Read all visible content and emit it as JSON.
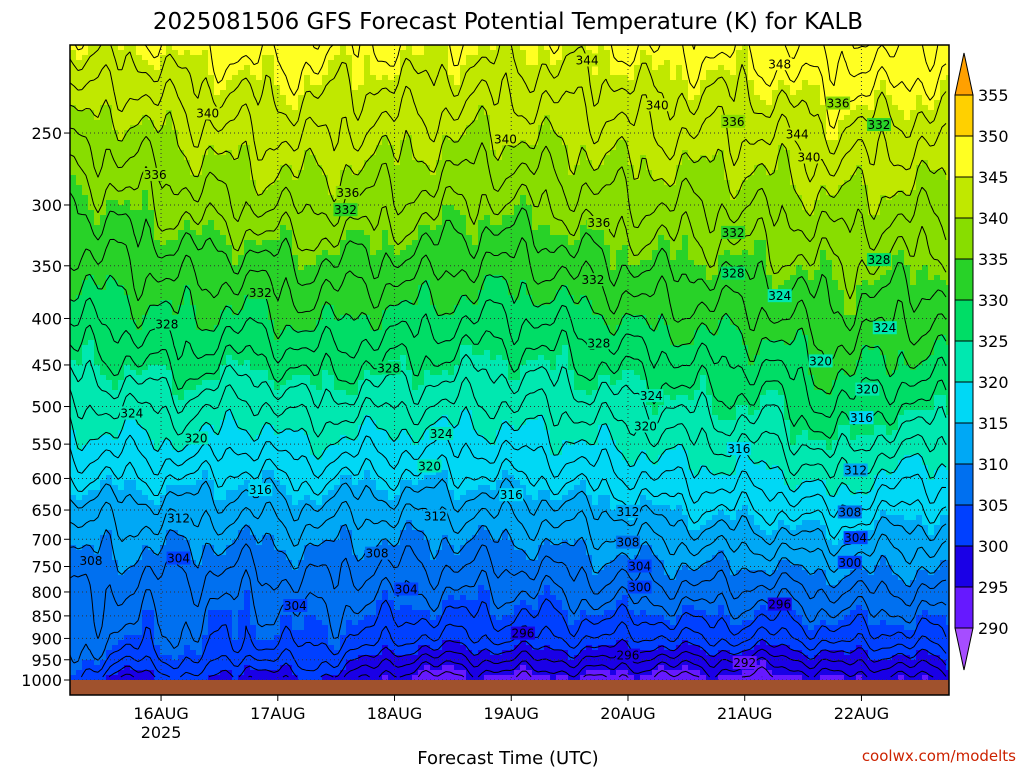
{
  "chart_data": {
    "type": "heatmap",
    "title": "2025081506 GFS Forecast Potential Temperature (K) for KALB",
    "xlabel": "Forecast Time (UTC)",
    "ylabel": "",
    "y_scale": "log",
    "y_reversed": true,
    "ylim": [
      1000,
      200
    ],
    "xlim": [
      -0.03,
      7.5
    ],
    "x_unit": "days from 2025-08-15 06 UTC",
    "x_ticks": [
      {
        "value": 0.75,
        "label": "16AUG",
        "sublabel": "2025"
      },
      {
        "value": 1.75,
        "label": "17AUG"
      },
      {
        "value": 2.75,
        "label": "18AUG"
      },
      {
        "value": 3.75,
        "label": "19AUG"
      },
      {
        "value": 4.75,
        "label": "20AUG"
      },
      {
        "value": 5.75,
        "label": "21AUG"
      },
      {
        "value": 6.75,
        "label": "22AUG"
      }
    ],
    "y_ticks": [
      250,
      300,
      350,
      400,
      450,
      500,
      550,
      600,
      650,
      700,
      750,
      800,
      850,
      900,
      950,
      1000
    ],
    "grid": true,
    "colorbar": {
      "ticks": [
        290,
        295,
        300,
        305,
        310,
        315,
        320,
        325,
        330,
        335,
        340,
        345,
        350,
        355
      ],
      "levels": [
        285,
        290,
        295,
        300,
        305,
        310,
        315,
        320,
        325,
        330,
        335,
        340,
        345,
        350,
        355,
        360
      ],
      "colors": [
        "#a64dff",
        "#6619ff",
        "#1a00e6",
        "#0040ff",
        "#0070f0",
        "#00a8f5",
        "#00d8f5",
        "#00e8b0",
        "#00dd66",
        "#28d228",
        "#88dd00",
        "#c0e800",
        "#ffff22",
        "#ffd000",
        "#ffa000"
      ]
    },
    "ground_color": "#a0522d",
    "profile_levels": [
      1000,
      975,
      950,
      925,
      900,
      850,
      800,
      750,
      700,
      650,
      600,
      550,
      500,
      450,
      400,
      350,
      300,
      250,
      200
    ],
    "columns": [
      {
        "t": 0.0,
        "theta": [
          304,
          305,
          306,
          306.5,
          307,
          307.5,
          308.5,
          309.5,
          311,
          313,
          316,
          319,
          322,
          325,
          328,
          331,
          334,
          339,
          345
        ]
      },
      {
        "t": 0.5,
        "theta": [
          297,
          300,
          302,
          304,
          305,
          306.5,
          307.5,
          309,
          311,
          313,
          316,
          319,
          322,
          325.5,
          329,
          332,
          335.5,
          339,
          345
        ]
      },
      {
        "t": 1.0,
        "theta": [
          302,
          303.5,
          304.5,
          305,
          305.5,
          306,
          307,
          308.5,
          310.5,
          313,
          316,
          320,
          323,
          327,
          330,
          333,
          337,
          341,
          346
        ]
      },
      {
        "t": 1.5,
        "theta": [
          297,
          299,
          301,
          303,
          304,
          305,
          306.5,
          308,
          310,
          312.5,
          315,
          318,
          321,
          325,
          329,
          333,
          338,
          342,
          347
        ]
      },
      {
        "t": 2.0,
        "theta": [
          300,
          302,
          303,
          304,
          305,
          306,
          307.5,
          309,
          311,
          313.5,
          316.5,
          320,
          323.5,
          327,
          331,
          334,
          338.5,
          342.5,
          347
        ]
      },
      {
        "t": 2.5,
        "theta": [
          296,
          298,
          300,
          302,
          303.5,
          305,
          306.5,
          308,
          310,
          312.5,
          315.5,
          319,
          322.5,
          326,
          329.5,
          333.5,
          337.5,
          341.5,
          346
        ]
      },
      {
        "t": 3.0,
        "theta": [
          293,
          295,
          297,
          299.5,
          301.5,
          304,
          306,
          308,
          310,
          312.5,
          315.5,
          318.5,
          322,
          325.5,
          329,
          333,
          337,
          341,
          346
        ]
      },
      {
        "t": 3.5,
        "theta": [
          294,
          296,
          298,
          300,
          302,
          304,
          306,
          308,
          310,
          312.5,
          315.5,
          318.5,
          321.5,
          324.5,
          328,
          331.5,
          335.5,
          340,
          345
        ]
      },
      {
        "t": 4.0,
        "theta": [
          294,
          296,
          298,
          300,
          302,
          304,
          306,
          308,
          310.5,
          313,
          316,
          319,
          322,
          325,
          328,
          332,
          336,
          340.5,
          345
        ]
      },
      {
        "t": 4.5,
        "theta": [
          294,
          296,
          298,
          300,
          302,
          304.5,
          307,
          309,
          311.5,
          314,
          317,
          320,
          323,
          326,
          329.5,
          333.5,
          337.5,
          341,
          345.5
        ]
      },
      {
        "t": 5.0,
        "theta": [
          293,
          295,
          297,
          299.5,
          301.5,
          304.5,
          307,
          309.5,
          312,
          315,
          318,
          321,
          324,
          327,
          331,
          334.5,
          338,
          342,
          346.5
        ]
      },
      {
        "t": 5.5,
        "theta": [
          294,
          296,
          298,
          300.5,
          302.5,
          305,
          307.5,
          310,
          313,
          316,
          319,
          322,
          325,
          328,
          331,
          334.5,
          338,
          342,
          346.5
        ]
      },
      {
        "t": 6.0,
        "theta": [
          293,
          295,
          297,
          299.5,
          301.5,
          304.5,
          307,
          310,
          313,
          316,
          319,
          322,
          325,
          328,
          331.5,
          335,
          338.5,
          342,
          347
        ]
      },
      {
        "t": 6.5,
        "theta": [
          295,
          297,
          299,
          301,
          303,
          305.5,
          308,
          311,
          314.5,
          318,
          322,
          325.5,
          328.5,
          331,
          333.5,
          336,
          339.5,
          344,
          349
        ]
      },
      {
        "t": 7.0,
        "theta": [
          295,
          297,
          299,
          301,
          303,
          305.5,
          308,
          310.5,
          313,
          316,
          319,
          322.5,
          326,
          329.5,
          332.5,
          335.5,
          339,
          343,
          349
        ]
      },
      {
        "t": 7.5,
        "theta": [
          296,
          298,
          300,
          302,
          303.5,
          305.5,
          307.5,
          310,
          312.5,
          315.5,
          318.5,
          322,
          325.5,
          329,
          332,
          335,
          338.5,
          342.5,
          347
        ]
      }
    ],
    "contour_labels": [
      {
        "value": 344,
        "t": 4.4,
        "p": 208
      },
      {
        "value": 348,
        "t": 6.05,
        "p": 210
      },
      {
        "value": 340,
        "t": 1.15,
        "p": 238
      },
      {
        "value": 340,
        "t": 3.7,
        "p": 254
      },
      {
        "value": 340,
        "t": 5.0,
        "p": 233
      },
      {
        "value": 336,
        "t": 6.55,
        "p": 232
      },
      {
        "value": 336,
        "t": 5.65,
        "p": 243
      },
      {
        "value": 344,
        "t": 6.2,
        "p": 251
      },
      {
        "value": 332,
        "t": 6.9,
        "p": 245
      },
      {
        "value": 340,
        "t": 6.3,
        "p": 266
      },
      {
        "value": 336,
        "t": 0.7,
        "p": 278
      },
      {
        "value": 336,
        "t": 2.35,
        "p": 291
      },
      {
        "value": 332,
        "t": 2.33,
        "p": 304
      },
      {
        "value": 336,
        "t": 4.5,
        "p": 314
      },
      {
        "value": 332,
        "t": 5.65,
        "p": 322
      },
      {
        "value": 328,
        "t": 5.65,
        "p": 357
      },
      {
        "value": 328,
        "t": 6.9,
        "p": 345
      },
      {
        "value": 332,
        "t": 1.6,
        "p": 375
      },
      {
        "value": 332,
        "t": 4.45,
        "p": 363
      },
      {
        "value": 324,
        "t": 6.05,
        "p": 378
      },
      {
        "value": 328,
        "t": 0.8,
        "p": 406
      },
      {
        "value": 324,
        "t": 6.95,
        "p": 410
      },
      {
        "value": 328,
        "t": 4.5,
        "p": 426
      },
      {
        "value": 320,
        "t": 6.4,
        "p": 446
      },
      {
        "value": 328,
        "t": 2.7,
        "p": 454
      },
      {
        "value": 320,
        "t": 6.8,
        "p": 479
      },
      {
        "value": 324,
        "t": 4.95,
        "p": 487
      },
      {
        "value": 324,
        "t": 0.5,
        "p": 509
      },
      {
        "value": 316,
        "t": 6.75,
        "p": 515
      },
      {
        "value": 320,
        "t": 4.9,
        "p": 526
      },
      {
        "value": 324,
        "t": 3.15,
        "p": 536
      },
      {
        "value": 320,
        "t": 1.05,
        "p": 542
      },
      {
        "value": 316,
        "t": 5.7,
        "p": 557
      },
      {
        "value": 320,
        "t": 3.05,
        "p": 582
      },
      {
        "value": 312,
        "t": 6.7,
        "p": 588
      },
      {
        "value": 316,
        "t": 1.6,
        "p": 618
      },
      {
        "value": 316,
        "t": 3.75,
        "p": 626
      },
      {
        "value": 312,
        "t": 4.75,
        "p": 653
      },
      {
        "value": 308,
        "t": 6.65,
        "p": 654
      },
      {
        "value": 312,
        "t": 0.9,
        "p": 664
      },
      {
        "value": 312,
        "t": 3.1,
        "p": 661
      },
      {
        "value": 304,
        "t": 6.7,
        "p": 698
      },
      {
        "value": 308,
        "t": 4.75,
        "p": 706
      },
      {
        "value": 300,
        "t": 6.65,
        "p": 743
      },
      {
        "value": 308,
        "t": 0.15,
        "p": 740
      },
      {
        "value": 304,
        "t": 0.9,
        "p": 735
      },
      {
        "value": 308,
        "t": 2.6,
        "p": 726
      },
      {
        "value": 304,
        "t": 4.85,
        "p": 750
      },
      {
        "value": 300,
        "t": 4.85,
        "p": 791
      },
      {
        "value": 304,
        "t": 2.85,
        "p": 795
      },
      {
        "value": 304,
        "t": 1.9,
        "p": 829
      },
      {
        "value": 296,
        "t": 6.05,
        "p": 826
      },
      {
        "value": 296,
        "t": 3.85,
        "p": 889
      },
      {
        "value": 296,
        "t": 4.75,
        "p": 940
      },
      {
        "value": 292,
        "t": 5.75,
        "p": 958
      }
    ]
  },
  "credit": "coolwx.com/modelts"
}
